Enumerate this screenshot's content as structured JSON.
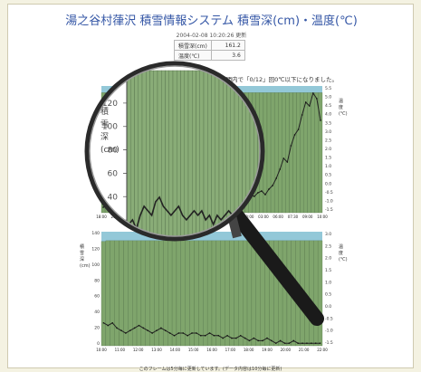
{
  "header": {
    "title": "湯之谷村葎沢 積雪情報システム 積雪深(cm)・温度(℃)",
    "timestamp": "2004-02-08 10:20:26 更新"
  },
  "readings": [
    {
      "label": "積雪深(cm)",
      "value": "161.2"
    },
    {
      "label": "温度(℃)",
      "value": "3.6"
    }
  ],
  "notice": "時間内で「0/12」回0℃以下になりました。",
  "footer": "このフレームは5分毎に更新しています。(データ内容は10分毎に更新)",
  "colors": {
    "title": "#3557a6",
    "chart_bg": "#93c8d8",
    "bar": "#7fa56c",
    "magnifier_handle": "#1a1a1a"
  },
  "icons": {
    "magnifier": "magnifying-glass-icon"
  },
  "chart_data": [
    {
      "type": "bar",
      "name_label": "upper",
      "right_axis_label": [
        "温",
        "度",
        "(℃)"
      ],
      "right_ticks": [
        "5.5",
        "5.0",
        "4.5",
        "4.0",
        "3.5",
        "3.0",
        "2.5",
        "2.0",
        "1.5",
        "1.0",
        "0.5",
        "0.0",
        "-0.5",
        "-1.0",
        "-1.5"
      ],
      "x_ticks": [
        "18:00",
        "21:00",
        "00:00",
        "03:00",
        "06:00",
        "09:00",
        "12:00",
        "15:00",
        "18:00",
        "21:00",
        "00:00",
        "03:00",
        "06:00",
        "07:30",
        "09:00",
        "10:00"
      ],
      "snow_depth_cm": [
        161,
        161,
        161,
        161,
        161,
        161,
        161,
        161,
        161,
        161,
        161,
        161,
        161,
        161,
        161,
        161,
        161,
        161,
        161,
        161,
        161,
        161,
        161,
        161,
        161,
        161,
        161,
        161,
        161,
        161,
        161,
        161,
        161,
        161,
        161,
        161,
        161,
        161,
        161,
        161,
        161,
        161,
        161,
        161,
        161,
        161,
        161,
        161,
        161,
        161,
        161,
        161,
        161,
        161,
        161,
        161,
        161,
        161,
        161,
        161
      ],
      "temperature_c": [
        -1.2,
        -1.1,
        -1.3,
        -1.0,
        -0.8,
        -0.9,
        -1.0,
        -0.7,
        -0.6,
        -0.8,
        -0.9,
        -1.0,
        -0.9,
        -0.8,
        -1.0,
        -1.1,
        -1.0,
        -0.9,
        -1.0,
        -0.9,
        -1.1,
        -1.0,
        -1.2,
        -1.0,
        -1.1,
        -1.0,
        -0.9,
        -1.0,
        -1.1,
        -1.2,
        -1.0,
        -1.1,
        -1.0,
        -0.9,
        -1.0,
        -1.1,
        -1.0,
        -0.8,
        -0.6,
        -0.7,
        -0.5,
        -0.6,
        -0.4,
        -0.3,
        -0.5,
        -0.2,
        0.0,
        0.4,
        0.9,
        1.5,
        1.3,
        2.2,
        2.8,
        3.1,
        3.9,
        4.6,
        4.4,
        5.1,
        4.8,
        3.6
      ],
      "ylim_temp": [
        -1.5,
        5.5
      ]
    },
    {
      "type": "bar",
      "name_label": "lower",
      "left_axis_label": [
        "積",
        "雪",
        "深",
        "(cm)"
      ],
      "left_ticks": [
        "140",
        "120",
        "100",
        "80",
        "60",
        "40",
        "20",
        "0"
      ],
      "right_axis_label": [
        "温",
        "度",
        "(℃)"
      ],
      "right_ticks": [
        "3.0",
        "2.5",
        "2.0",
        "1.5",
        "1.0",
        "0.5",
        "0.0",
        "-0.5",
        "-1.0",
        "-1.5"
      ],
      "x_ticks": [
        "10:00",
        "11:00",
        "12:00",
        "13:00",
        "14:00",
        "15:00",
        "16:00",
        "17:00",
        "18:00",
        "19:00",
        "20:00",
        "21:00",
        "22:00"
      ],
      "snow_depth_cm": [
        128,
        129,
        129,
        129,
        129,
        129,
        129,
        129,
        129,
        129,
        129,
        129,
        129,
        129,
        129,
        129,
        129,
        129,
        129,
        129,
        129,
        129,
        129,
        129,
        129,
        129,
        129,
        129,
        129,
        129,
        129,
        129,
        129,
        129,
        129,
        129,
        129,
        129,
        129,
        129,
        129,
        129,
        129,
        129,
        129,
        129,
        129,
        129,
        129,
        129
      ],
      "temperature_c": [
        -0.6,
        -0.7,
        -0.6,
        -0.8,
        -0.9,
        -1.0,
        -0.9,
        -0.8,
        -0.7,
        -0.8,
        -0.9,
        -1.0,
        -0.9,
        -0.8,
        -0.9,
        -1.0,
        -1.1,
        -1.0,
        -1.0,
        -1.1,
        -1.0,
        -1.0,
        -1.1,
        -1.1,
        -1.0,
        -1.1,
        -1.1,
        -1.2,
        -1.1,
        -1.2,
        -1.2,
        -1.1,
        -1.2,
        -1.3,
        -1.2,
        -1.3,
        -1.3,
        -1.2,
        -1.3,
        -1.4,
        -1.3,
        -1.4,
        -1.4,
        -1.3,
        -1.4,
        -1.4,
        -1.4,
        -1.4,
        -1.4,
        -1.4
      ],
      "ylim_depth": [
        0,
        140
      ],
      "ylim_temp": [
        -1.5,
        3.0
      ]
    }
  ],
  "magnifier": {
    "left_ticks": [
      "140",
      "120",
      "100",
      "80",
      "60",
      "40",
      "20",
      "0"
    ],
    "left_axis_label": [
      "積",
      "雪",
      "深",
      "(cm)"
    ],
    "ylim_depth": [
      0,
      150
    ]
  }
}
